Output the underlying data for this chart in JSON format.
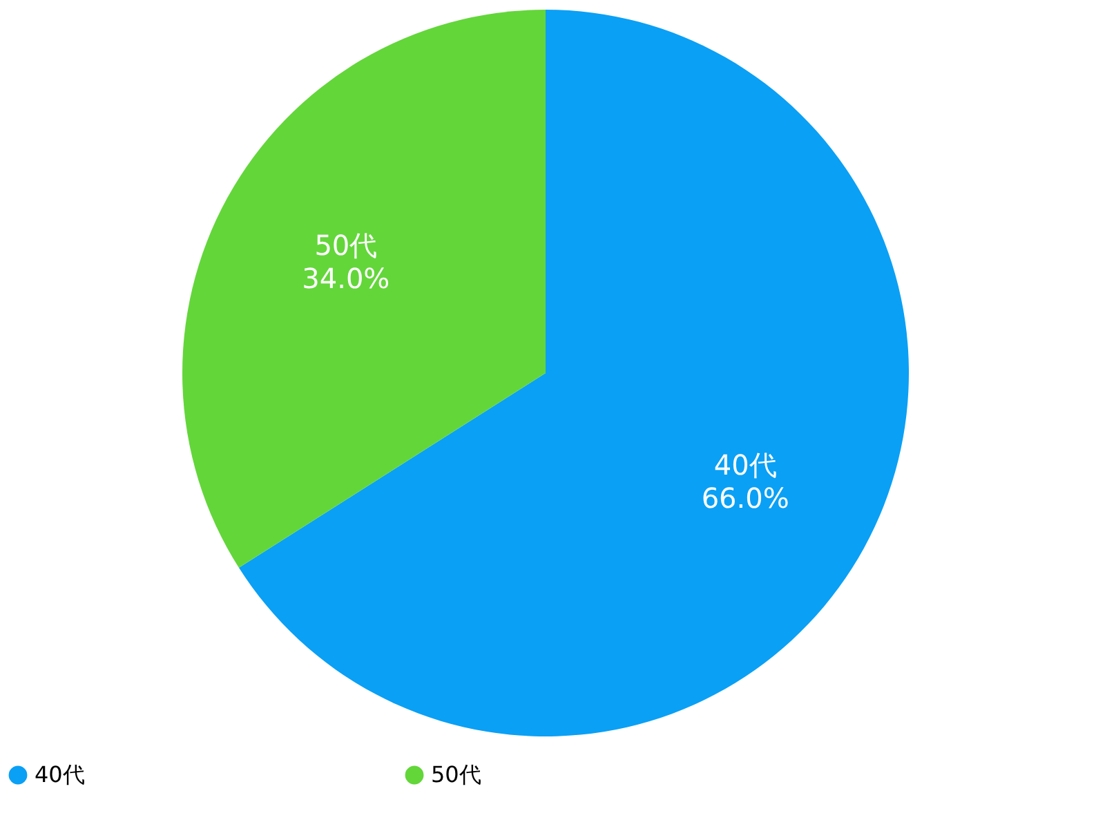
{
  "chart_data": {
    "type": "pie",
    "categories": [
      "40代",
      "50代"
    ],
    "values": [
      66.0,
      34.0
    ],
    "value_labels": [
      "66.0%",
      "34.0%"
    ],
    "colors": [
      "#0aa0f5",
      "#63d63a"
    ],
    "legend": "bottom"
  }
}
